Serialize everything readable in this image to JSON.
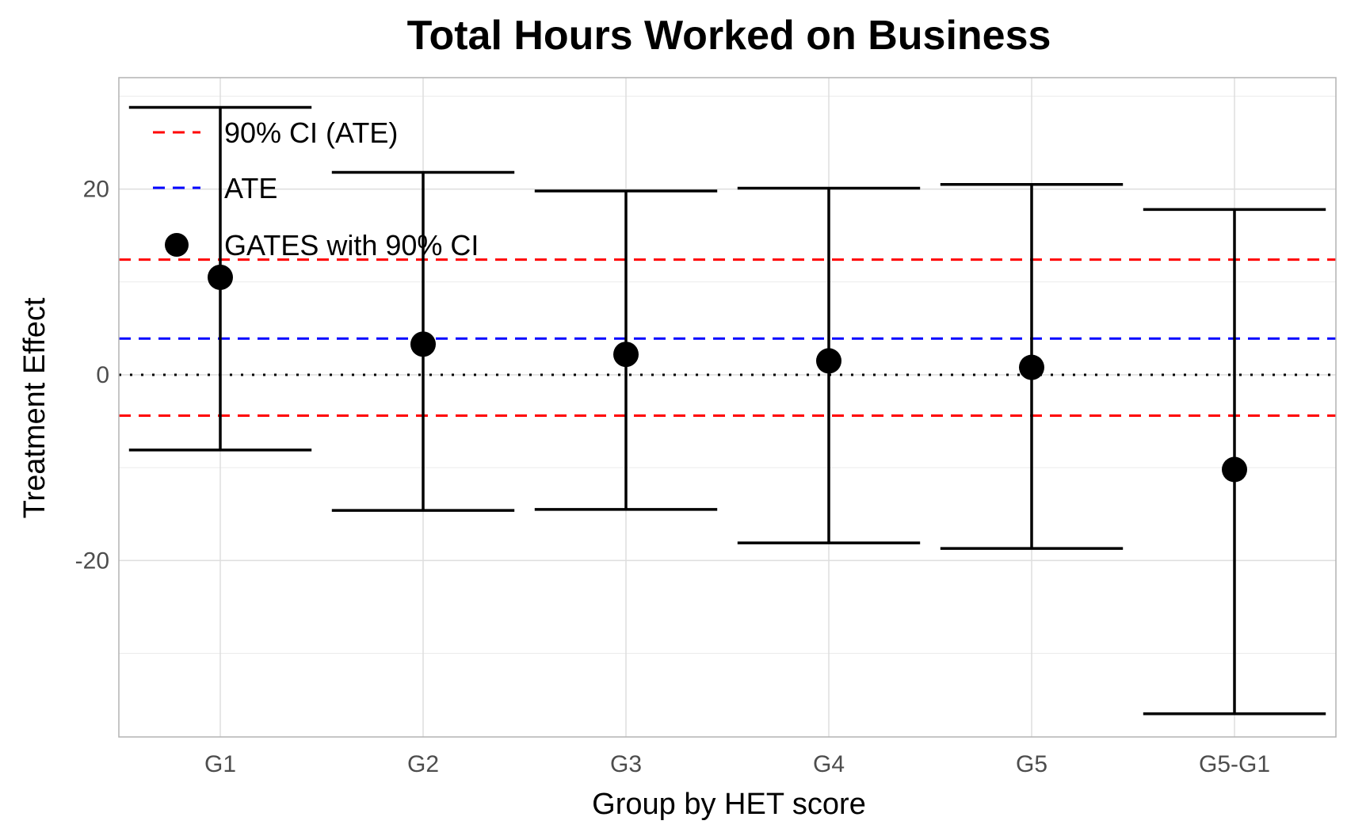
{
  "chart_data": {
    "type": "scatter",
    "title": "Total Hours Worked on Business",
    "xlabel": "Group by HET score",
    "ylabel": "Treatment Effect",
    "categories": [
      "G1",
      "G2",
      "G3",
      "G4",
      "G5",
      "G5-G1"
    ],
    "ylim": [
      -39,
      32
    ],
    "yticks": [
      20,
      0,
      -20
    ],
    "ytick_labels": [
      "20",
      "0",
      "-20"
    ],
    "grid": true,
    "legend_position": "top-left",
    "series": [
      {
        "name": "GATES with 90% CI",
        "estimate": [
          10.5,
          3.3,
          2.2,
          1.5,
          0.8,
          -10.2
        ],
        "ci_lower": [
          -8.1,
          -14.6,
          -14.5,
          -18.1,
          -18.7,
          -36.5
        ],
        "ci_upper": [
          28.8,
          21.8,
          19.8,
          20.1,
          20.5,
          17.8
        ]
      }
    ],
    "reference_lines": [
      {
        "name": "ATE",
        "y": 3.9,
        "color": "#0000ff",
        "style": "dashed"
      },
      {
        "name": "90% CI (ATE)",
        "y": 12.4,
        "color": "#ff0000",
        "style": "dashed"
      },
      {
        "name": "90% CI (ATE)",
        "y": -4.4,
        "color": "#ff0000",
        "style": "dashed"
      },
      {
        "name": "zero",
        "y": 0,
        "color": "#000000",
        "style": "dotted"
      }
    ],
    "legend": [
      {
        "label": "90% CI (ATE)",
        "kind": "red-dashed-line",
        "color": "#ff0000"
      },
      {
        "label": "ATE",
        "kind": "blue-dashed-line",
        "color": "#0000ff"
      },
      {
        "label": "GATES with 90% CI",
        "kind": "black-point",
        "color": "#000000"
      }
    ]
  }
}
